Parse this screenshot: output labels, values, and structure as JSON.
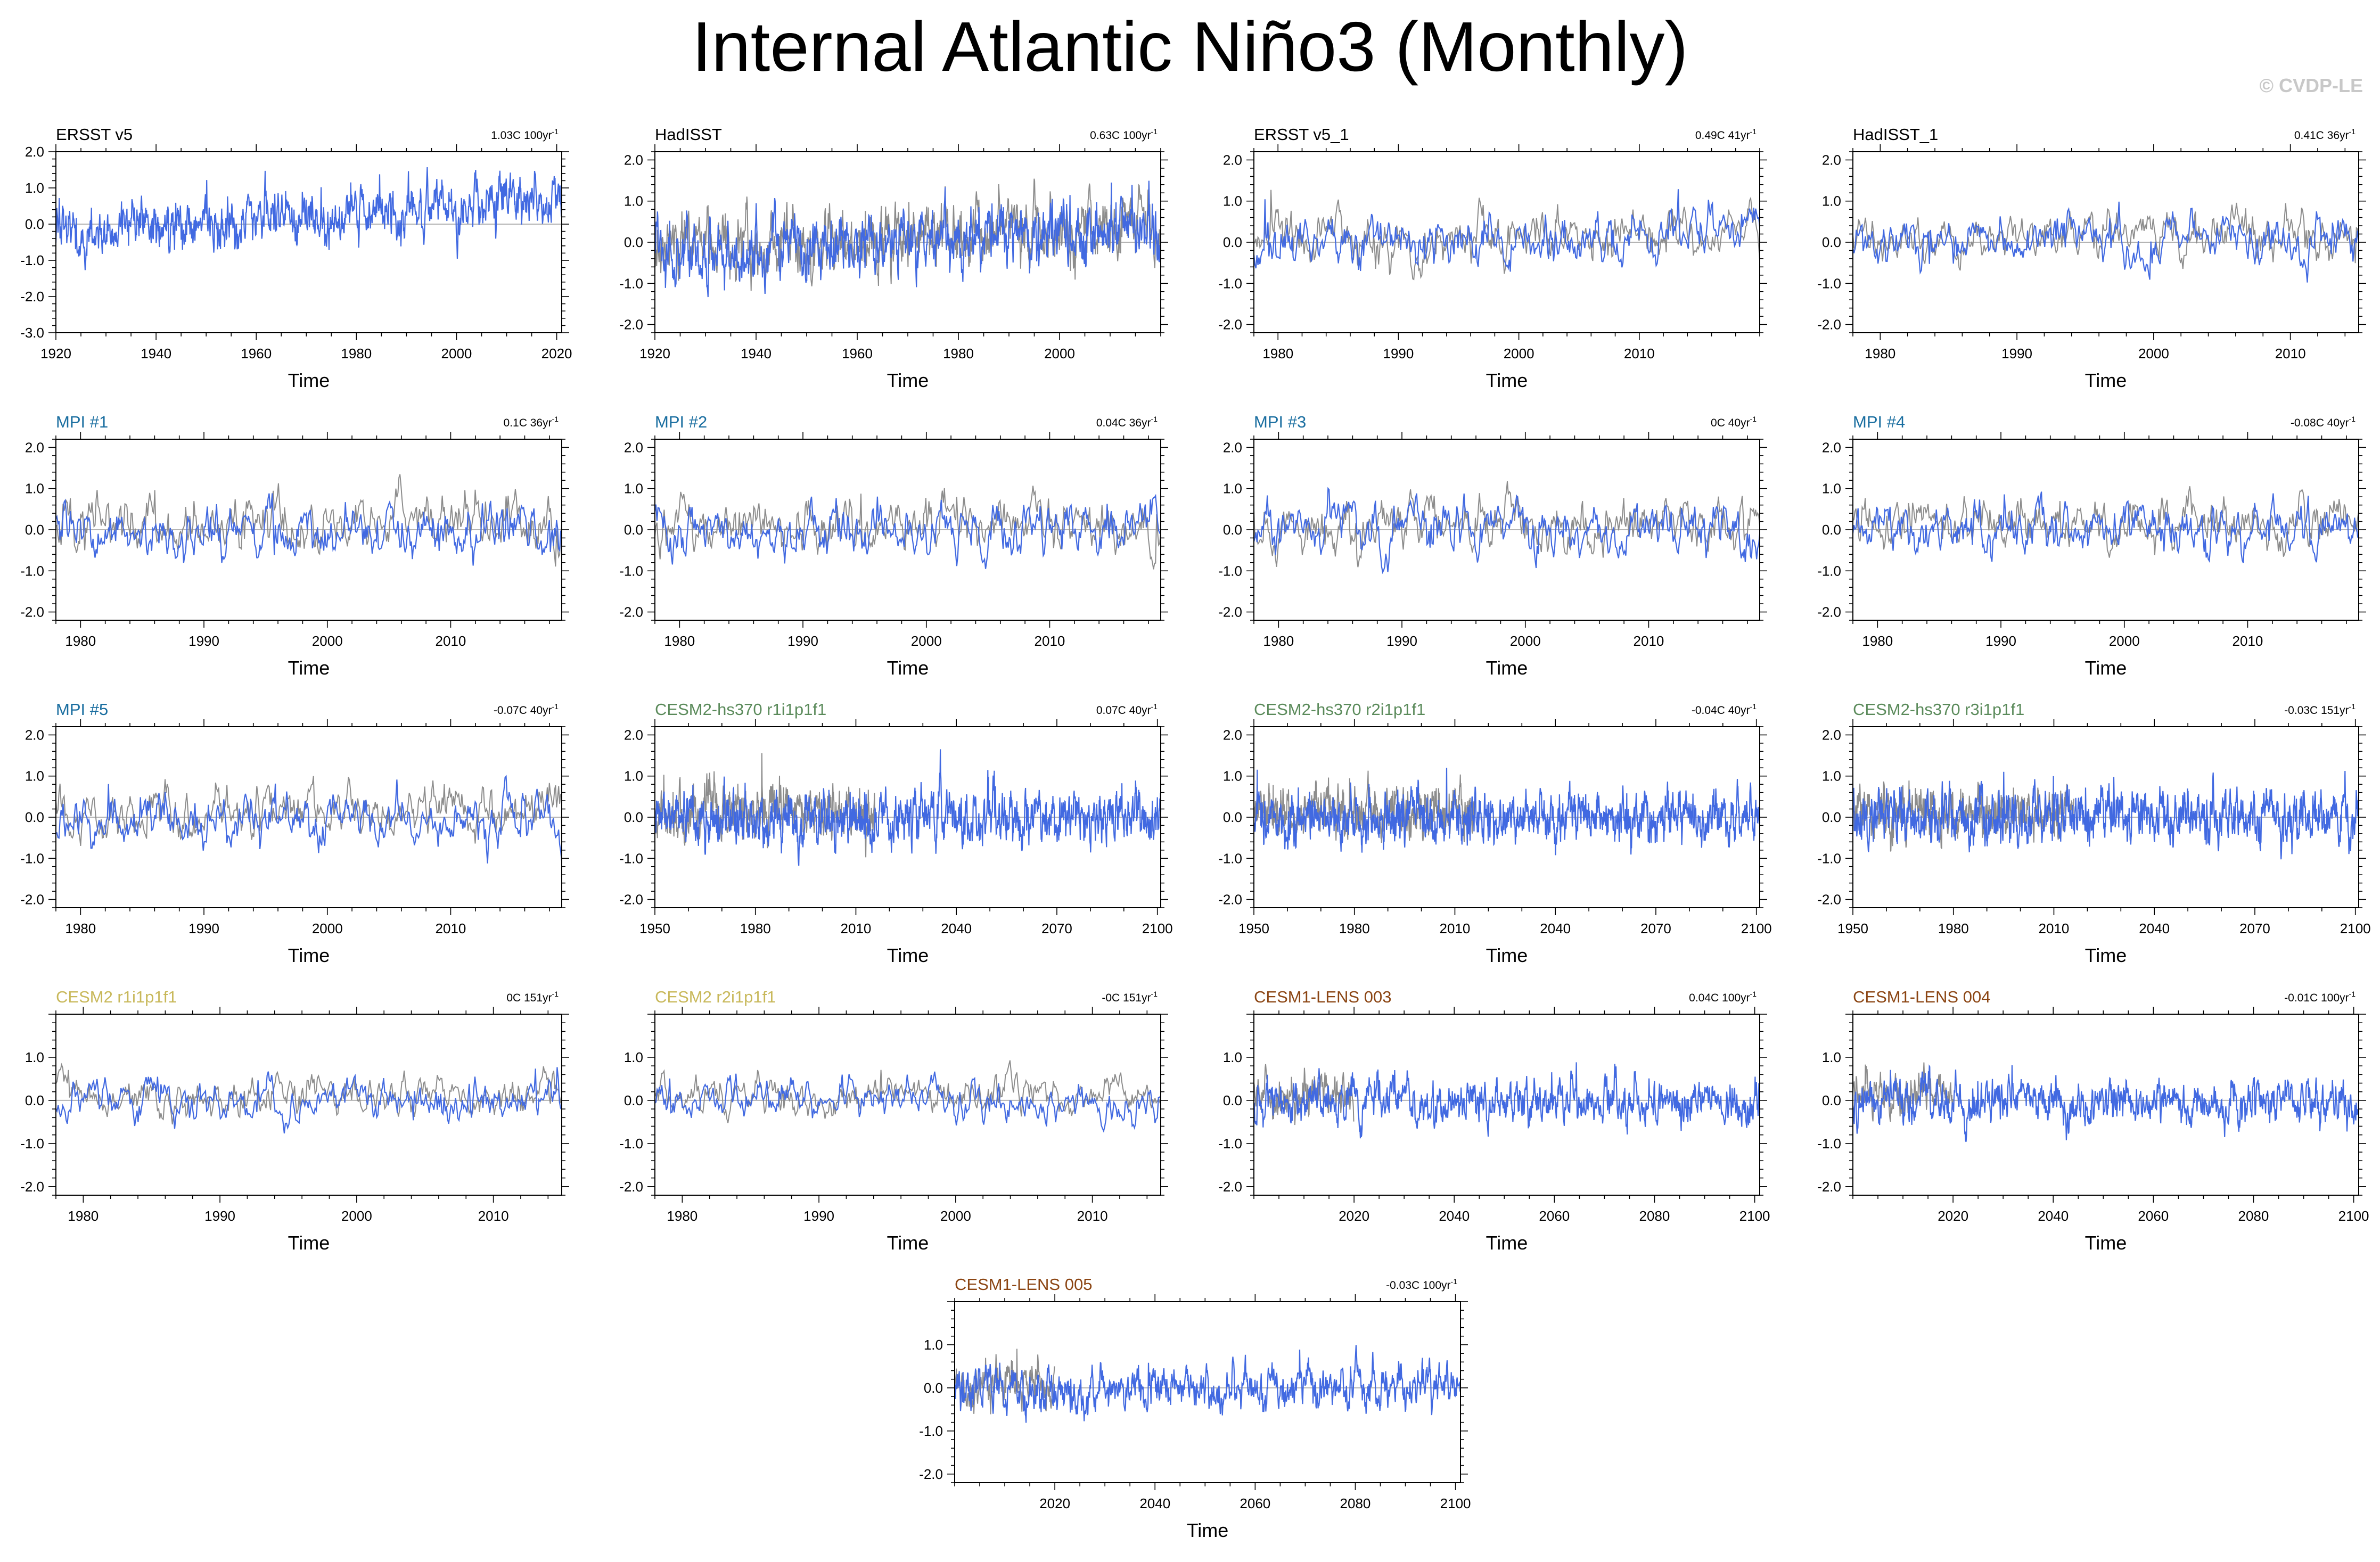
{
  "title": "Internal Atlantic Niño3 (Monthly)",
  "watermark": "© CVDP-LE",
  "colors": {
    "model": "#4169e1",
    "obs": "#8c8c8c",
    "axis": "#000000"
  },
  "chart_data": [
    {
      "type": "line",
      "title": "ERSST v5",
      "title_color": "#000000",
      "trend": "1.03C 100yr",
      "trend_unit": "-1",
      "xlabel": "Time",
      "xlim": [
        1920,
        2021
      ],
      "xticks": [
        1920,
        1940,
        1960,
        1980,
        2000,
        2020
      ],
      "ylim": [
        -3.0,
        2.0
      ],
      "yticks": [
        2.0,
        1.0,
        0.0,
        -1.0,
        -2.0,
        -3.0
      ],
      "mean": 0.18,
      "slope": 0.0103,
      "amp": 0.48,
      "grey": false,
      "grey_end": null,
      "seed": 11
    },
    {
      "type": "line",
      "title": "HadISST",
      "title_color": "#000000",
      "trend": "0.63C 100yr",
      "trend_unit": "-1",
      "xlabel": "Time",
      "xlim": [
        1920,
        2020
      ],
      "xticks": [
        1920,
        1940,
        1960,
        1980,
        2000
      ],
      "ylim": [
        -2.2,
        2.2
      ],
      "yticks": [
        2.0,
        1.0,
        0.0,
        -1.0,
        -2.0
      ],
      "mean": 0.05,
      "slope": 0.0063,
      "amp": 0.5,
      "grey": true,
      "grey_end": 2020,
      "seed": 12
    },
    {
      "type": "line",
      "title": "ERSST v5_1",
      "title_color": "#000000",
      "trend": "0.49C 41yr",
      "trend_unit": "-1",
      "xlabel": "Time",
      "xlim": [
        1978,
        2020
      ],
      "xticks": [
        1980,
        1990,
        2000,
        2010
      ],
      "ylim": [
        -2.2,
        2.2
      ],
      "yticks": [
        2.0,
        1.0,
        0.0,
        -1.0,
        -2.0
      ],
      "mean": 0.05,
      "slope": 0.0049,
      "amp": 0.4,
      "grey": true,
      "grey_end": 2020,
      "seed": 13
    },
    {
      "type": "line",
      "title": "HadISST_1",
      "title_color": "#000000",
      "trend": "0.41C 36yr",
      "trend_unit": "-1",
      "xlabel": "Time",
      "xlim": [
        1978,
        2015
      ],
      "xticks": [
        1980,
        1990,
        2000,
        2010
      ],
      "ylim": [
        -2.2,
        2.2
      ],
      "yticks": [
        2.0,
        1.0,
        0.0,
        -1.0,
        -2.0
      ],
      "mean": 0.0,
      "slope": 0.0041,
      "amp": 0.4,
      "grey": true,
      "grey_end": 2015,
      "seed": 14
    },
    {
      "type": "line",
      "title": "MPI #1",
      "title_color": "#1a6ea0",
      "trend": "0.1C 36yr",
      "trend_unit": "-1",
      "xlabel": "Time",
      "xlim": [
        1978,
        2019
      ],
      "xticks": [
        1980,
        1990,
        2000,
        2010
      ],
      "ylim": [
        -2.2,
        2.2
      ],
      "yticks": [
        2.0,
        1.0,
        0.0,
        -1.0,
        -2.0
      ],
      "mean": 0.0,
      "slope": 0.001,
      "amp": 0.42,
      "grey": true,
      "grey_end": 2019,
      "seed": 21
    },
    {
      "type": "line",
      "title": "MPI #2",
      "title_color": "#1a6ea0",
      "trend": "0.04C 36yr",
      "trend_unit": "-1",
      "xlabel": "Time",
      "xlim": [
        1978,
        2019
      ],
      "xticks": [
        1980,
        1990,
        2000,
        2010
      ],
      "ylim": [
        -2.2,
        2.2
      ],
      "yticks": [
        2.0,
        1.0,
        0.0,
        -1.0,
        -2.0
      ],
      "mean": 0.0,
      "slope": 0.0004,
      "amp": 0.4,
      "grey": true,
      "grey_end": 2019,
      "seed": 22
    },
    {
      "type": "line",
      "title": "MPI #3",
      "title_color": "#1a6ea0",
      "trend": "0C 40yr",
      "trend_unit": "-1",
      "xlabel": "Time",
      "xlim": [
        1978,
        2019
      ],
      "xticks": [
        1980,
        1990,
        2000,
        2010
      ],
      "ylim": [
        -2.2,
        2.2
      ],
      "yticks": [
        2.0,
        1.0,
        0.0,
        -1.0,
        -2.0
      ],
      "mean": 0.0,
      "slope": 0.0,
      "amp": 0.4,
      "grey": true,
      "grey_end": 2019,
      "seed": 23
    },
    {
      "type": "line",
      "title": "MPI #4",
      "title_color": "#1a6ea0",
      "trend": "-0.08C 40yr",
      "trend_unit": "-1",
      "xlabel": "Time",
      "xlim": [
        1978,
        2019
      ],
      "xticks": [
        1980,
        1990,
        2000,
        2010
      ],
      "ylim": [
        -2.2,
        2.2
      ],
      "yticks": [
        2.0,
        1.0,
        0.0,
        -1.0,
        -2.0
      ],
      "mean": 0.0,
      "slope": -0.0008,
      "amp": 0.4,
      "grey": true,
      "grey_end": 2019,
      "seed": 24
    },
    {
      "type": "line",
      "title": "MPI #5",
      "title_color": "#1a6ea0",
      "trend": "-0.07C 40yr",
      "trend_unit": "-1",
      "xlabel": "Time",
      "xlim": [
        1978,
        2019
      ],
      "xticks": [
        1980,
        1990,
        2000,
        2010
      ],
      "ylim": [
        -2.2,
        2.2
      ],
      "yticks": [
        2.0,
        1.0,
        0.0,
        -1.0,
        -2.0
      ],
      "mean": 0.0,
      "slope": -0.0007,
      "amp": 0.4,
      "grey": true,
      "grey_end": 2019,
      "seed": 25
    },
    {
      "type": "line",
      "title": "CESM2-hs370 r1i1p1f1",
      "title_color": "#5a8a5a",
      "trend": "0.07C 40yr",
      "trend_unit": "-1",
      "xlabel": "Time",
      "xlim": [
        1950,
        2101
      ],
      "xticks": [
        1950,
        1980,
        2010,
        2040,
        2070,
        2100
      ],
      "ylim": [
        -2.2,
        2.2
      ],
      "yticks": [
        2.0,
        1.0,
        0.0,
        -1.0,
        -2.0
      ],
      "mean": 0.0,
      "slope": 0.0,
      "amp": 0.38,
      "grey": true,
      "grey_end": 2016,
      "seed": 31
    },
    {
      "type": "line",
      "title": "CESM2-hs370 r2i1p1f1",
      "title_color": "#5a8a5a",
      "trend": "-0.04C 40yr",
      "trend_unit": "-1",
      "xlabel": "Time",
      "xlim": [
        1950,
        2101
      ],
      "xticks": [
        1950,
        1980,
        2010,
        2040,
        2070,
        2100
      ],
      "ylim": [
        -2.2,
        2.2
      ],
      "yticks": [
        2.0,
        1.0,
        0.0,
        -1.0,
        -2.0
      ],
      "mean": 0.0,
      "slope": 0.0,
      "amp": 0.38,
      "grey": true,
      "grey_end": 2016,
      "seed": 32
    },
    {
      "type": "line",
      "title": "CESM2-hs370 r3i1p1f1",
      "title_color": "#5a8a5a",
      "trend": "-0.03C 151yr",
      "trend_unit": "-1",
      "xlabel": "Time",
      "xlim": [
        1950,
        2101
      ],
      "xticks": [
        1950,
        1980,
        2010,
        2040,
        2070,
        2100
      ],
      "ylim": [
        -2.2,
        2.2
      ],
      "yticks": [
        2.0,
        1.0,
        0.0,
        -1.0,
        -2.0
      ],
      "mean": 0.0,
      "slope": 0.0,
      "amp": 0.38,
      "grey": true,
      "grey_end": 2016,
      "seed": 33
    },
    {
      "type": "line",
      "title": "CESM2 r1i1p1f1",
      "title_color": "#c8b85a",
      "trend": "0C 151yr",
      "trend_unit": "-1",
      "xlabel": "Time",
      "xlim": [
        1978,
        2015
      ],
      "xticks": [
        1980,
        1990,
        2000,
        2010
      ],
      "ylim": [
        -2.2,
        2.0
      ],
      "yticks": [
        1.0,
        0.0,
        -1.0,
        -2.0
      ],
      "mean": 0.0,
      "slope": 0.0,
      "amp": 0.28,
      "grey": true,
      "grey_end": 2015,
      "seed": 41
    },
    {
      "type": "line",
      "title": "CESM2 r2i1p1f1",
      "title_color": "#c8b85a",
      "trend": "-0C 151yr",
      "trend_unit": "-1",
      "xlabel": "Time",
      "xlim": [
        1978,
        2015
      ],
      "xticks": [
        1980,
        1990,
        2000,
        2010
      ],
      "ylim": [
        -2.2,
        2.0
      ],
      "yticks": [
        1.0,
        0.0,
        -1.0,
        -2.0
      ],
      "mean": 0.0,
      "slope": 0.0,
      "amp": 0.28,
      "grey": true,
      "grey_end": 2015,
      "seed": 42
    },
    {
      "type": "line",
      "title": "CESM1-LENS 003",
      "title_color": "#8b4513",
      "trend": "0.04C 100yr",
      "trend_unit": "-1",
      "xlabel": "Time",
      "xlim": [
        2000,
        2101
      ],
      "xticks": [
        2020,
        2040,
        2060,
        2080,
        2100
      ],
      "ylim": [
        -2.2,
        2.0
      ],
      "yticks": [
        1.0,
        0.0,
        -1.0,
        -2.0
      ],
      "mean": 0.0,
      "slope": 0.0,
      "amp": 0.33,
      "grey": true,
      "grey_end": 2020,
      "seed": 51
    },
    {
      "type": "line",
      "title": "CESM1-LENS 004",
      "title_color": "#8b4513",
      "trend": "-0.01C 100yr",
      "trend_unit": "-1",
      "xlabel": "Time",
      "xlim": [
        2000,
        2101
      ],
      "xticks": [
        2020,
        2040,
        2060,
        2080,
        2100
      ],
      "ylim": [
        -2.2,
        2.0
      ],
      "yticks": [
        1.0,
        0.0,
        -1.0,
        -2.0
      ],
      "mean": 0.0,
      "slope": 0.0,
      "amp": 0.33,
      "grey": true,
      "grey_end": 2020,
      "seed": 52
    },
    {
      "type": "line",
      "title": "CESM1-LENS 005",
      "title_color": "#8b4513",
      "trend": "-0.03C 100yr",
      "trend_unit": "-1",
      "xlabel": "Time",
      "xlim": [
        2000,
        2101
      ],
      "xticks": [
        2020,
        2040,
        2060,
        2080,
        2100
      ],
      "ylim": [
        -2.2,
        2.0
      ],
      "yticks": [
        1.0,
        0.0,
        -1.0,
        -2.0
      ],
      "mean": 0.0,
      "slope": 0.0,
      "amp": 0.33,
      "grey": true,
      "grey_end": 2020,
      "seed": 53
    }
  ]
}
